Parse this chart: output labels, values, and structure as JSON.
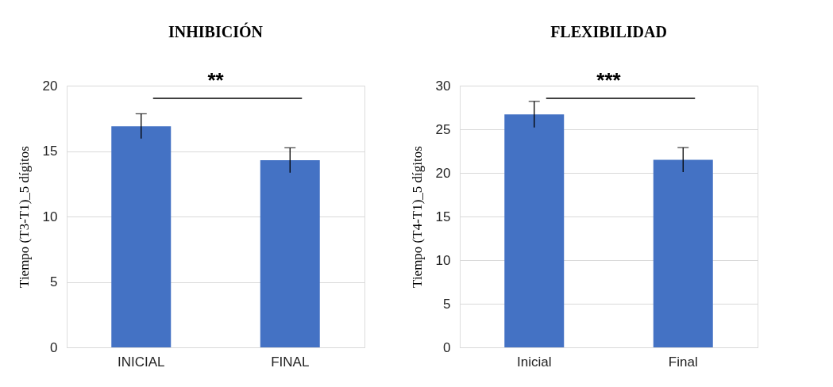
{
  "chart_data": [
    {
      "type": "bar",
      "title": "INHIBICIÓN",
      "ylabel": "Tiempo (T3-T1)_5 dígitos",
      "categories": [
        "INICIAL",
        "FINAL"
      ],
      "values": [
        16.9,
        14.3
      ],
      "errors": [
        0.95,
        0.95
      ],
      "color": "#4472c4",
      "ylim": [
        0,
        20
      ],
      "yticks": [
        0,
        5,
        10,
        15,
        20
      ],
      "grid": "y",
      "annotations": [
        "**"
      ]
    },
    {
      "type": "bar",
      "title": "FLEXIBILIDAD",
      "ylabel": "Tiempo (T4-T1)_5 dígitos",
      "categories": [
        "Inicial",
        "Final"
      ],
      "values": [
        26.7,
        21.5
      ],
      "errors": [
        1.5,
        1.4
      ],
      "color": "#4472c4",
      "ylim": [
        0,
        30
      ],
      "yticks": [
        0,
        5,
        10,
        15,
        20,
        25,
        30
      ],
      "grid": "y",
      "annotations": [
        "***"
      ]
    }
  ]
}
